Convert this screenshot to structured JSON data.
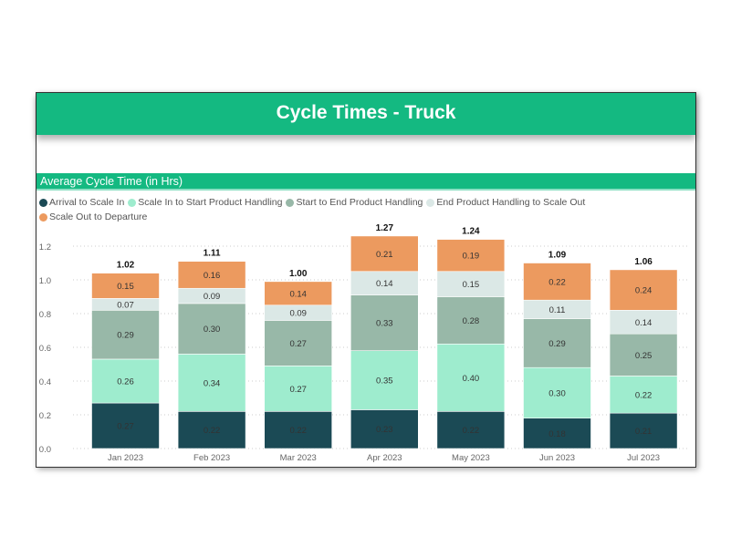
{
  "header": {
    "title": "Cycle Times - Truck"
  },
  "chart_data": {
    "type": "bar",
    "stacked": true,
    "title": "Average Cycle Time (in Hrs)",
    "xlabel": "",
    "ylabel": "",
    "ylim": [
      0,
      1.3
    ],
    "yticks": [
      "0.0",
      "0.2",
      "0.4",
      "0.6",
      "0.8",
      "1.0",
      "1.2"
    ],
    "grid": true,
    "legend_position": "top-left",
    "categories": [
      "Jan 2023",
      "Feb 2023",
      "Mar 2023",
      "Apr 2023",
      "May 2023",
      "Jun 2023",
      "Jul 2023"
    ],
    "series": [
      {
        "name": "Arrival to Scale In",
        "color": "#1b4a55",
        "values": [
          0.27,
          0.22,
          0.22,
          0.23,
          0.22,
          0.18,
          0.21
        ]
      },
      {
        "name": "Scale In to Start Product Handling",
        "color": "#9eecce",
        "values": [
          0.26,
          0.34,
          0.27,
          0.35,
          0.4,
          0.3,
          0.22
        ]
      },
      {
        "name": "Start to End Product Handling",
        "color": "#98b8a8",
        "values": [
          0.29,
          0.3,
          0.27,
          0.33,
          0.28,
          0.29,
          0.25
        ]
      },
      {
        "name": "End Product Handling to Scale Out",
        "color": "#dbe8e6",
        "values": [
          0.07,
          0.09,
          0.09,
          0.14,
          0.15,
          0.11,
          0.14
        ]
      },
      {
        "name": "Scale Out to Departure",
        "color": "#ec9a5f",
        "values": [
          0.15,
          0.16,
          0.14,
          0.21,
          0.19,
          0.22,
          0.24
        ]
      }
    ],
    "totals": [
      1.02,
      1.11,
      1.0,
      1.27,
      1.24,
      1.09,
      1.06
    ]
  }
}
